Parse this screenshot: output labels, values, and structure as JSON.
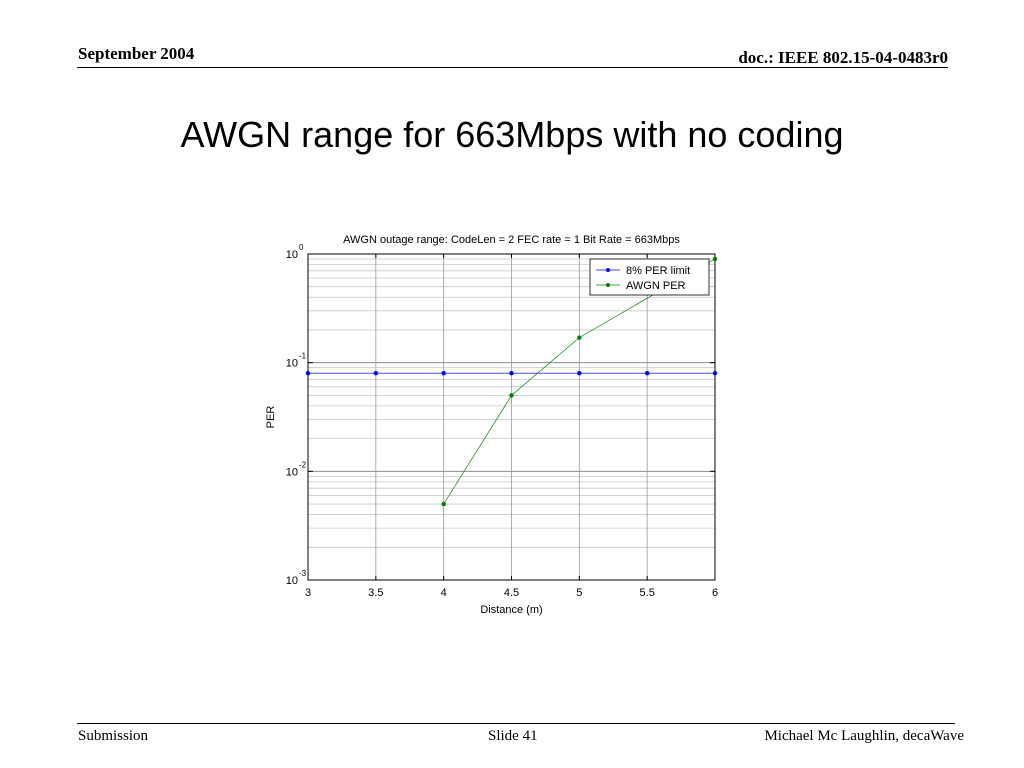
{
  "header": {
    "date": "September 2004",
    "doc": "doc.: IEEE 802.15-04-0483r0"
  },
  "slide": {
    "title": "AWGN range for 663Mbps with no coding"
  },
  "footer": {
    "left": "Submission",
    "center": "Slide 41",
    "right": "Michael Mc Laughlin, decaWave"
  },
  "chart_data": {
    "type": "line",
    "title": "AWGN outage range: CodeLen = 2 FEC rate = 1 Bit Rate = 663Mbps",
    "xlabel": "Distance (m)",
    "ylabel": "PER",
    "xlim": [
      3,
      6
    ],
    "ylim": [
      0.001,
      1
    ],
    "yscale": "log",
    "x_ticks": [
      3,
      3.5,
      4,
      4.5,
      5,
      5.5,
      6
    ],
    "x_tick_labels": [
      "3",
      "3.5",
      "4",
      "4.5",
      "5",
      "5.5",
      "6"
    ],
    "y_ticks": [
      {
        "value": 1,
        "base": "10",
        "exp": "0"
      },
      {
        "value": 0.1,
        "base": "10",
        "exp": "-1"
      },
      {
        "value": 0.01,
        "base": "10",
        "exp": "-2"
      },
      {
        "value": 0.001,
        "base": "10",
        "exp": "-3"
      }
    ],
    "grid": true,
    "legend_position": "top-right",
    "series": [
      {
        "name": "8% PER limit",
        "color": "#0000ff",
        "x": [
          3,
          3.5,
          4,
          4.5,
          5,
          5.5,
          6
        ],
        "y": [
          0.08,
          0.08,
          0.08,
          0.08,
          0.08,
          0.08,
          0.08
        ]
      },
      {
        "name": "AWGN PER",
        "color": "#008000",
        "x": [
          4,
          4.5,
          5,
          6
        ],
        "y": [
          0.005,
          0.05,
          0.17,
          0.9
        ]
      }
    ]
  }
}
